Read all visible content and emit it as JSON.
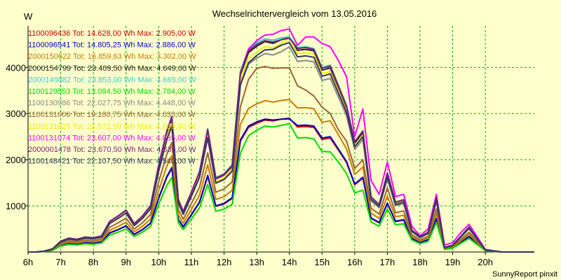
{
  "chart_data": {
    "type": "line",
    "title": "Wechselrichtervergleich vom 13.05.2016",
    "ylabel": "W",
    "xlabel": "",
    "footer": "SunnyReport pinxit",
    "grid": true,
    "legend_placement": "top-left",
    "xlim": [
      6,
      21.5
    ],
    "ylim": [
      0,
      4900
    ],
    "x_ticks": [
      {
        "value": 6,
        "label": "6h"
      },
      {
        "value": 7,
        "label": "7h"
      },
      {
        "value": 8,
        "label": "8h"
      },
      {
        "value": 9,
        "label": "9h"
      },
      {
        "value": 10,
        "label": "10h"
      },
      {
        "value": 11,
        "label": "11h"
      },
      {
        "value": 12,
        "label": "12h"
      },
      {
        "value": 13,
        "label": "13h"
      },
      {
        "value": 14,
        "label": "14h"
      },
      {
        "value": 15,
        "label": "15h"
      },
      {
        "value": 16,
        "label": "16h"
      },
      {
        "value": 17,
        "label": "17h"
      },
      {
        "value": 18,
        "label": "18h"
      },
      {
        "value": 19,
        "label": "19h"
      },
      {
        "value": 20,
        "label": "20h"
      }
    ],
    "y_ticks": [
      {
        "value": 1000,
        "label": "1000"
      },
      {
        "value": 2000,
        "label": "2000"
      },
      {
        "value": 3000,
        "label": "3000"
      },
      {
        "value": 4000,
        "label": "4000"
      }
    ],
    "x": [
      6.0,
      6.25,
      6.5,
      6.75,
      7.0,
      7.25,
      7.5,
      7.75,
      8.0,
      8.25,
      8.5,
      8.75,
      9.0,
      9.25,
      9.5,
      9.75,
      10.0,
      10.25,
      10.4,
      10.6,
      10.75,
      11.0,
      11.25,
      11.5,
      11.75,
      12.0,
      12.25,
      12.5,
      12.75,
      13.0,
      13.25,
      13.5,
      13.75,
      14.0,
      14.25,
      14.5,
      14.75,
      15.0,
      15.25,
      15.5,
      15.75,
      16.0,
      16.25,
      16.5,
      16.75,
      17.0,
      17.25,
      17.5,
      17.75,
      18.0,
      18.25,
      18.5,
      18.75,
      19.0,
      19.25,
      19.5,
      19.75,
      20.0,
      20.5,
      21.0,
      21.5
    ],
    "series": [
      {
        "name": "1100096436 Tot: 14.628,00 Wh Max: 2.905,00 W",
        "color": "#cc0000",
        "values": [
          0,
          0,
          12,
          41,
          145,
          185,
          170,
          200,
          190,
          215,
          410,
          480,
          560,
          380,
          480,
          620,
          1160,
          1620,
          1810,
          700,
          540,
          800,
          1070,
          1640,
          990,
          1040,
          1160,
          2400,
          2700,
          2790,
          2860,
          2840,
          2880,
          2900,
          2710,
          2720,
          2700,
          2440,
          2470,
          2210,
          1940,
          1460,
          1600,
          730,
          630,
          1050,
          660,
          690,
          290,
          200,
          260,
          720,
          60,
          90,
          210,
          330,
          180,
          30,
          0,
          0,
          0
        ]
      },
      {
        "name": "1100096541 Tot: 14.805,25 Wh Max: 2.886,00 W",
        "color": "#0000cc",
        "values": [
          0,
          0,
          13,
          42,
          146,
          188,
          171,
          202,
          192,
          218,
          415,
          486,
          567,
          385,
          486,
          628,
          1175,
          1640,
          1830,
          710,
          550,
          810,
          1085,
          1660,
          1000,
          1055,
          1175,
          2430,
          2730,
          2820,
          2880,
          2860,
          2880,
          2886,
          2740,
          2750,
          2730,
          2470,
          2500,
          2235,
          1960,
          1475,
          1620,
          740,
          640,
          1060,
          670,
          700,
          295,
          205,
          265,
          730,
          62,
          92,
          212,
          335,
          182,
          31,
          0,
          0,
          0
        ]
      },
      {
        "name": "2000150622 Tot: 16.859,63 Wh Max: 3.302,00 W",
        "color": "#cc7a00",
        "values": [
          0,
          0,
          14,
          48,
          166,
          214,
          195,
          230,
          218,
          248,
          472,
          553,
          645,
          438,
          553,
          714,
          1337,
          1866,
          2083,
          808,
          626,
          921,
          1234,
          1890,
          1139,
          1200,
          1337,
          2766,
          3110,
          3210,
          3280,
          3250,
          3285,
          3302,
          3120,
          3130,
          3105,
          2810,
          2845,
          2543,
          2231,
          1680,
          1845,
          842,
          728,
          1207,
          763,
          797,
          336,
          233,
          302,
          831,
          70,
          105,
          241,
          381,
          207,
          35,
          0,
          0,
          0
        ]
      },
      {
        "name": "2000154799 Tot: 23.409,50 Wh Max: 4.649,00 W",
        "color": "#222222",
        "values": [
          0,
          0,
          20,
          67,
          230,
          297,
          271,
          320,
          303,
          345,
          656,
          768,
          895,
          608,
          768,
          992,
          1856,
          2592,
          2892,
          1122,
          869,
          1280,
          1713,
          2625,
          1582,
          1666,
          1856,
          3840,
          4320,
          4460,
          4560,
          4520,
          4600,
          4649,
          4370,
          4390,
          4360,
          3940,
          3990,
          3570,
          3130,
          2360,
          2590,
          1180,
          1020,
          1690,
          1070,
          1120,
          470,
          327,
          424,
          1166,
          98,
          147,
          338,
          535,
          290,
          49,
          0,
          0,
          0
        ]
      },
      {
        "name": "2000149882 Tot: 23.853,00 Wh Max: 4.665,00 W",
        "color": "#33cccc",
        "values": [
          0,
          0,
          20,
          68,
          234,
          302,
          276,
          326,
          309,
          351,
          668,
          782,
          912,
          619,
          782,
          1010,
          1891,
          2641,
          2947,
          1143,
          885,
          1304,
          1745,
          2675,
          1612,
          1697,
          1891,
          3913,
          4400,
          4540,
          4620,
          4590,
          4640,
          4665,
          4430,
          4450,
          4410,
          4000,
          4050,
          3620,
          3175,
          2395,
          2630,
          1197,
          1035,
          1715,
          1086,
          1136,
          477,
          332,
          430,
          1183,
          99,
          149,
          343,
          543,
          294,
          50,
          0,
          0,
          0
        ]
      },
      {
        "name": "1100129553 Tot: 13.084,50 Wh Max: 2.784,00 W",
        "color": "#00dd00",
        "values": [
          0,
          0,
          11,
          36,
          128,
          165,
          151,
          178,
          169,
          192,
          366,
          428,
          499,
          339,
          428,
          553,
          1035,
          1446,
          1613,
          626,
          485,
          714,
          955,
          1464,
          883,
          929,
          1035,
          2142,
          2520,
          2640,
          2730,
          2710,
          2745,
          2784,
          2470,
          2480,
          2450,
          2180,
          2170,
          1950,
          1700,
          1280,
          1340,
          650,
          560,
          930,
          590,
          610,
          260,
          180,
          230,
          640,
          55,
          80,
          187,
          295,
          160,
          27,
          0,
          0,
          0
        ]
      },
      {
        "name": "1100130986 Tot: 22.027,75 Wh Max: 4.448,00 W",
        "color": "#888888",
        "values": [
          0,
          0,
          19,
          63,
          217,
          280,
          255,
          301,
          285,
          324,
          617,
          723,
          843,
          572,
          723,
          934,
          1747,
          2440,
          2722,
          1057,
          818,
          1205,
          1612,
          2470,
          1489,
          1568,
          1747,
          3614,
          4070,
          4200,
          4300,
          4270,
          4340,
          4448,
          4130,
          4150,
          4120,
          3720,
          3760,
          3360,
          2950,
          2220,
          2440,
          1110,
          960,
          1590,
          1005,
          1050,
          442,
          308,
          399,
          1098,
          92,
          138,
          318,
          504,
          273,
          46,
          0,
          0,
          0
        ]
      },
      {
        "name": "1100131006 Tot: 19.180,75 Wh Max: 4.033,00 W",
        "color": "#996633",
        "values": [
          0,
          0,
          16,
          55,
          189,
          244,
          222,
          262,
          248,
          282,
          537,
          629,
          734,
          498,
          629,
          813,
          1521,
          2124,
          2370,
          920,
          712,
          1049,
          1404,
          2151,
          1296,
          1365,
          1521,
          3147,
          3740,
          3980,
          4020,
          3980,
          3990,
          3990,
          3600,
          3510,
          3380,
          3140,
          3000,
          2650,
          2400,
          1810,
          2000,
          950,
          820,
          1390,
          850,
          890,
          376,
          262,
          340,
          935,
          78,
          117,
          270,
          428,
          232,
          39,
          0,
          0,
          0
        ]
      },
      {
        "name": "1100131025 Tot: 22.572,50 Wh Max: 4.639,00 W",
        "color": "#eeee00",
        "values": [
          0,
          0,
          19,
          64,
          222,
          286,
          261,
          308,
          292,
          332,
          632,
          741,
          864,
          586,
          741,
          957,
          1790,
          2500,
          2790,
          1083,
          838,
          1235,
          1652,
          2532,
          1526,
          1607,
          1790,
          3703,
          4200,
          4340,
          4450,
          4420,
          4520,
          4639,
          4300,
          4320,
          4290,
          3870,
          3910,
          3500,
          3060,
          2300,
          2540,
          1155,
          997,
          1650,
          1045,
          1095,
          460,
          320,
          415,
          1140,
          96,
          144,
          331,
          524,
          284,
          48,
          0,
          0,
          0
        ]
      },
      {
        "name": "1100131074 Tot: 23.607,00 Wh Max: 4.835,00 W",
        "color": "#ff00ff",
        "values": [
          0,
          0,
          20,
          68,
          232,
          299,
          273,
          322,
          305,
          347,
          661,
          774,
          903,
          613,
          774,
          1000,
          1872,
          2614,
          2917,
          1132,
          876,
          1291,
          1727,
          2646,
          1595,
          1680,
          1872,
          3872,
          4400,
          4580,
          4700,
          4720,
          4800,
          4835,
          4480,
          4660,
          4660,
          4520,
          4450,
          4150,
          3800,
          2500,
          3100,
          1550,
          1250,
          1950,
          1200,
          1250,
          560,
          350,
          500,
          1250,
          150,
          200,
          420,
          600,
          330,
          55,
          0,
          0,
          0
        ]
      },
      {
        "name": "2000001478 Tot: 23.670,50 Wh Max: 4.635,00 W",
        "color": "#7a1f7a",
        "values": [
          0,
          0,
          20,
          68,
          233,
          300,
          274,
          323,
          306,
          348,
          663,
          776,
          905,
          615,
          776,
          1003,
          1877,
          2621,
          2925,
          1135,
          878,
          1294,
          1732,
          2653,
          1600,
          1685,
          1877,
          3882,
          4360,
          4500,
          4580,
          4550,
          4600,
          4635,
          4410,
          4430,
          4390,
          3980,
          4030,
          3600,
          3160,
          2390,
          2620,
          1193,
          1030,
          1710,
          1080,
          1130,
          475,
          330,
          428,
          1178,
          99,
          148,
          341,
          540,
          293,
          49,
          0,
          0,
          0
        ]
      },
      {
        "name": "1100148421 Tot: 22.107,50 Wh Max: 4.540,00 W",
        "color": "#333366",
        "values": [
          0,
          0,
          19,
          63,
          218,
          281,
          256,
          302,
          286,
          325,
          619,
          725,
          845,
          574,
          725,
          937,
          1753,
          2448,
          2732,
          1060,
          820,
          1209,
          1618,
          2478,
          1494,
          1573,
          1753,
          3626,
          4100,
          4260,
          4380,
          4390,
          4480,
          4540,
          4230,
          4250,
          4220,
          3810,
          3860,
          3450,
          3030,
          2280,
          2500,
          1140,
          985,
          1630,
          1030,
          1080,
          455,
          316,
          410,
          1128,
          95,
          142,
          327,
          518,
          281,
          47,
          0,
          0,
          0
        ]
      }
    ]
  }
}
